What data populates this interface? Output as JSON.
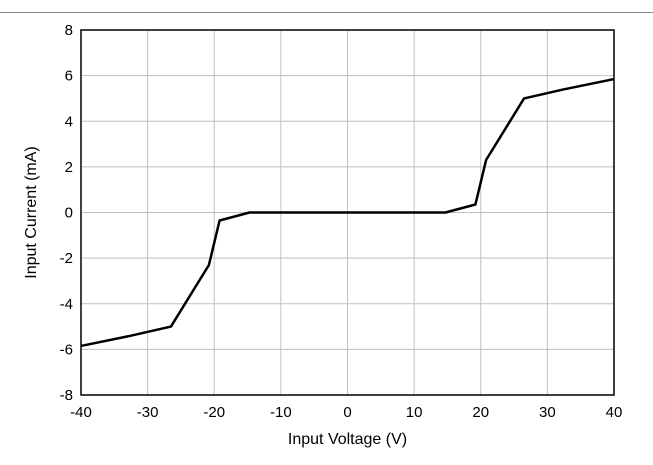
{
  "chart_data": {
    "type": "line",
    "title": "",
    "xlabel": "Input Voltage (V)",
    "ylabel": "Input Current (mA)",
    "xlim": [
      -40,
      40
    ],
    "ylim": [
      -8,
      8
    ],
    "xticks": [
      -40,
      -30,
      -20,
      -10,
      0,
      10,
      20,
      30,
      40
    ],
    "yticks": [
      -8,
      -6,
      -4,
      -2,
      0,
      2,
      4,
      6,
      8
    ],
    "grid": true,
    "series": [
      {
        "color": "#000000",
        "points": [
          [
            -40,
            -5.85
          ],
          [
            -32.5,
            -5.4
          ],
          [
            -26.5,
            -5.0
          ],
          [
            -20.8,
            -2.3
          ],
          [
            -19.2,
            -0.35
          ],
          [
            -14.7,
            0.0
          ],
          [
            14.7,
            0.0
          ],
          [
            19.2,
            0.35
          ],
          [
            20.8,
            2.3
          ],
          [
            26.5,
            5.0
          ],
          [
            32.5,
            5.4
          ],
          [
            40,
            5.85
          ]
        ]
      }
    ]
  }
}
